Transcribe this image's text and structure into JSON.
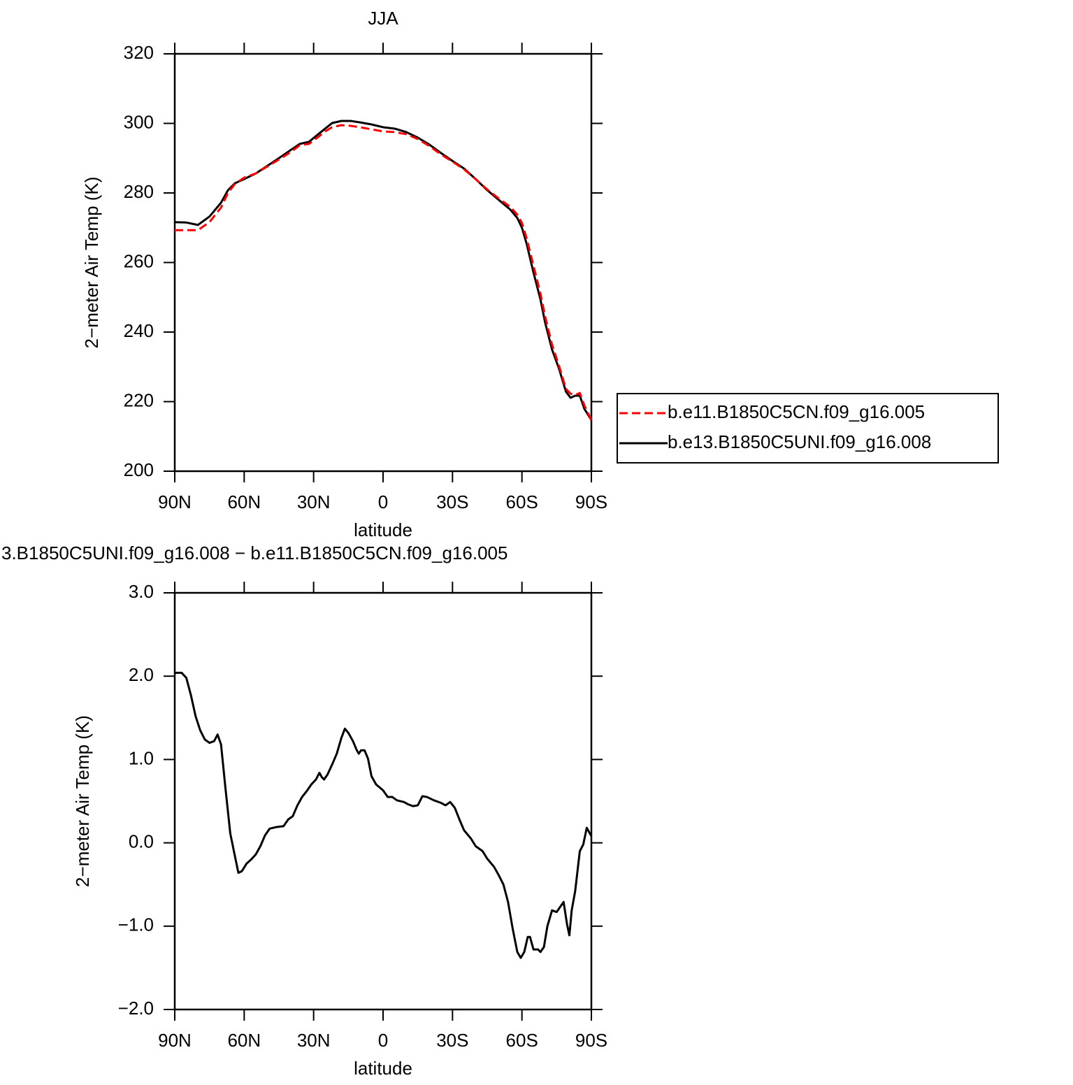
{
  "chart_data": [
    {
      "type": "line",
      "title": "JJA",
      "xlabel": "latitude",
      "ylabel": "2−meter Air Temp (K)",
      "x": [
        90,
        85,
        80,
        75,
        70,
        67,
        64,
        60,
        55,
        50,
        45,
        40,
        36,
        32,
        28,
        25,
        22,
        18,
        14,
        10,
        5,
        0,
        -5,
        -10,
        -15,
        -20,
        -25,
        -30,
        -35,
        -40,
        -45,
        -50,
        -55,
        -58,
        -60,
        -62,
        -65,
        -68,
        -70,
        -73,
        -76,
        -79,
        -81,
        -83,
        -85,
        -87,
        -90
      ],
      "series": [
        {
          "name": "b.e11.B1850C5CN.f09_g16.005",
          "color": "#ff0000",
          "dash": true,
          "values": [
            269.3,
            269.3,
            269.3,
            271.6,
            275.8,
            280.0,
            282.6,
            284.4,
            285.6,
            287.6,
            289.6,
            291.7,
            293.7,
            294.1,
            296.1,
            297.7,
            298.9,
            299.5,
            299.3,
            298.9,
            298.3,
            297.7,
            297.5,
            296.9,
            295.5,
            293.5,
            291.1,
            289.0,
            286.8,
            284.0,
            281.0,
            278.4,
            276.0,
            273.8,
            271.4,
            267.1,
            259.1,
            251.1,
            244.6,
            236.4,
            230.4,
            223.7,
            222.3,
            221.9,
            222.5,
            218.9,
            214.7
          ]
        },
        {
          "name": "b.e13.B1850C5UNI.f09_g16.008",
          "color": "#000000",
          "dash": false,
          "values": [
            271.6,
            271.5,
            270.8,
            273.2,
            277.2,
            280.8,
            282.8,
            284.0,
            285.6,
            287.8,
            290.0,
            292.3,
            294.1,
            294.7,
            296.9,
            298.5,
            300.1,
            300.7,
            300.7,
            300.3,
            299.7,
            298.9,
            298.5,
            297.5,
            295.9,
            293.9,
            291.5,
            289.2,
            287.0,
            284.0,
            280.8,
            278.0,
            275.2,
            272.8,
            270.0,
            265.5,
            257.1,
            249.4,
            242.8,
            235.0,
            229.5,
            222.9,
            221.1,
            221.7,
            221.7,
            217.9,
            214.7
          ]
        }
      ],
      "xlim": [
        90,
        -90
      ],
      "xticks": [
        {
          "value": 90,
          "label": "90N"
        },
        {
          "value": 60,
          "label": "60N"
        },
        {
          "value": 30,
          "label": "30N"
        },
        0,
        {
          "value": -30,
          "label": "30S"
        },
        {
          "value": -60,
          "label": "60S"
        },
        {
          "value": -90,
          "label": "90S"
        }
      ],
      "ylim": [
        200,
        320
      ],
      "yticks": [
        200,
        220,
        240,
        260,
        280,
        300,
        320
      ],
      "legend": "right"
    },
    {
      "type": "line",
      "title": "3.B1850C5UNI.f09_g16.008 − b.e11.B1850C5CN.f09_g16.005",
      "xlabel": "latitude",
      "ylabel": "2−meter Air Temp (K)",
      "x": [
        90,
        87,
        85,
        83,
        81,
        79,
        77,
        75,
        73,
        71.5,
        70,
        68,
        66,
        64,
        62.5,
        61,
        59,
        57,
        55,
        53,
        51,
        49,
        46,
        43,
        41,
        39,
        37,
        35,
        33,
        31,
        29,
        27.5,
        26.5,
        25.5,
        24,
        22,
        20,
        18,
        16.5,
        15,
        13,
        11.5,
        10.5,
        9.5,
        8,
        6.5,
        5,
        3,
        0,
        -2,
        -4,
        -6,
        -9,
        -11,
        -13,
        -15,
        -17,
        -19,
        -22,
        -25,
        -27,
        -29,
        -31,
        -33,
        -35,
        -38,
        -40,
        -43,
        -45,
        -48,
        -50,
        -52,
        -54,
        -56,
        -58,
        -59.5,
        -61,
        -62.5,
        -63.5,
        -65,
        -67,
        -68,
        -69.5,
        -71,
        -73,
        -75,
        -77,
        -78,
        -79.5,
        -80.5,
        -81.5,
        -83,
        -85,
        -86.5,
        -88,
        -89,
        -90
      ],
      "series": [
        {
          "color": "#000000",
          "dash": false,
          "values": [
            2.04,
            2.04,
            1.98,
            1.77,
            1.52,
            1.35,
            1.24,
            1.2,
            1.22,
            1.3,
            1.18,
            0.63,
            0.11,
            -0.16,
            -0.36,
            -0.34,
            -0.25,
            -0.2,
            -0.14,
            -0.04,
            0.09,
            0.17,
            0.19,
            0.2,
            0.28,
            0.32,
            0.45,
            0.55,
            0.62,
            0.7,
            0.76,
            0.84,
            0.79,
            0.76,
            0.82,
            0.94,
            1.07,
            1.26,
            1.37,
            1.32,
            1.22,
            1.12,
            1.07,
            1.11,
            1.11,
            1.01,
            0.8,
            0.7,
            0.63,
            0.55,
            0.55,
            0.51,
            0.49,
            0.46,
            0.44,
            0.45,
            0.56,
            0.55,
            0.51,
            0.48,
            0.45,
            0.49,
            0.42,
            0.28,
            0.15,
            0.05,
            -0.04,
            -0.1,
            -0.19,
            -0.29,
            -0.39,
            -0.5,
            -0.71,
            -1.03,
            -1.31,
            -1.38,
            -1.31,
            -1.13,
            -1.13,
            -1.28,
            -1.28,
            -1.31,
            -1.25,
            -1.0,
            -0.81,
            -0.83,
            -0.75,
            -0.71,
            -0.98,
            -1.11,
            -0.81,
            -0.58,
            -0.1,
            -0.02,
            0.18,
            0.13,
            0.08
          ]
        }
      ],
      "xlim": [
        90,
        -90
      ],
      "xticks": [
        {
          "value": 90,
          "label": "90N"
        },
        {
          "value": 60,
          "label": "60N"
        },
        {
          "value": 30,
          "label": "30N"
        },
        0,
        {
          "value": -30,
          "label": "30S"
        },
        {
          "value": -60,
          "label": "60S"
        },
        {
          "value": -90,
          "label": "90S"
        }
      ],
      "ylim": [
        -2,
        3
      ],
      "yticks": [
        {
          "value": -2,
          "label": "−2.0"
        },
        {
          "value": -1,
          "label": "−1.0"
        },
        {
          "value": 0,
          "label": "0.0"
        },
        {
          "value": 1,
          "label": "1.0"
        },
        {
          "value": 2,
          "label": "2.0"
        },
        {
          "value": 3,
          "label": "3.0"
        }
      ]
    }
  ]
}
